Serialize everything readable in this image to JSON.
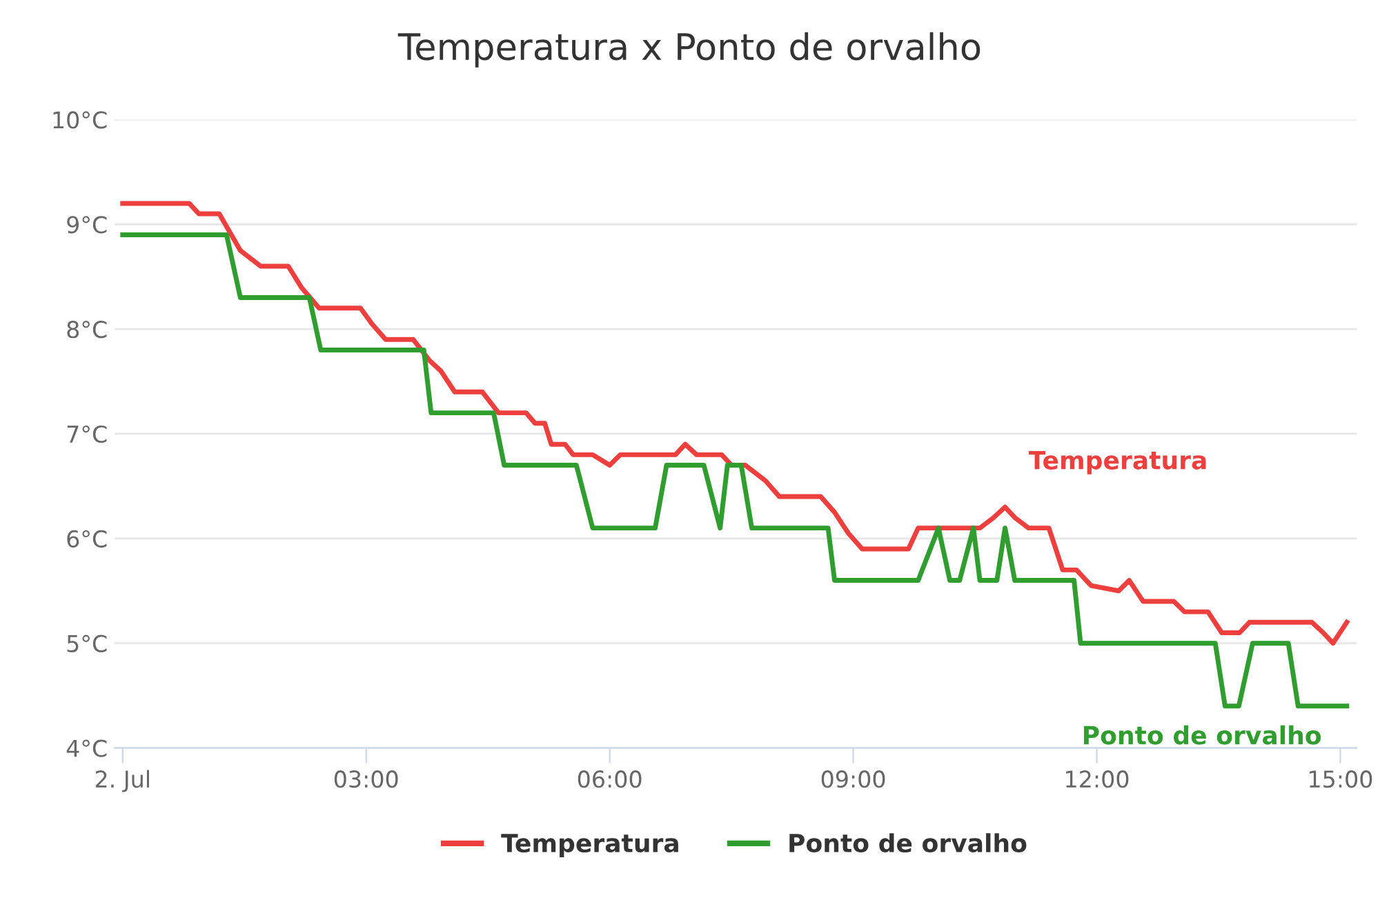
{
  "chart_data": {
    "type": "line",
    "title": "Temperatura x Ponto de orvalho",
    "xlim": [
      -0.1,
      15.2
    ],
    "xticks": [
      {
        "value": 0,
        "label": "2. Jul"
      },
      {
        "value": 3,
        "label": "03:00"
      },
      {
        "value": 6,
        "label": "06:00"
      },
      {
        "value": 9,
        "label": "09:00"
      },
      {
        "value": 12,
        "label": "12:00"
      },
      {
        "value": 15,
        "label": "15:00"
      }
    ],
    "ylim": [
      4,
      10
    ],
    "yticks": [
      {
        "value": 4,
        "label": "4°C"
      },
      {
        "value": 5,
        "label": "5°C"
      },
      {
        "value": 6,
        "label": "6°C"
      },
      {
        "value": 7,
        "label": "7°C"
      },
      {
        "value": 8,
        "label": "8°C"
      },
      {
        "value": 9,
        "label": "9°C"
      },
      {
        "value": 10,
        "label": "10°C"
      }
    ],
    "grid": "y",
    "legend": "bottom",
    "marker": "none",
    "line_style": "solid",
    "series": [
      {
        "name": "Temperatura",
        "color": "#ee3f3f",
        "x": [
          0,
          0.82,
          0.94,
          1.19,
          1.45,
          1.7,
          2.04,
          2.2,
          2.42,
          2.93,
          3.07,
          3.24,
          3.58,
          3.78,
          3.92,
          4.09,
          4.43,
          4.63,
          4.97,
          5.08,
          5.2,
          5.28,
          5.45,
          5.55,
          5.79,
          6.0,
          6.13,
          6.81,
          6.93,
          7.07,
          7.38,
          7.5,
          7.67,
          7.92,
          8.09,
          8.6,
          8.77,
          8.94,
          9.11,
          9.68,
          9.8,
          10.56,
          10.73,
          10.87,
          10.99,
          11.16,
          11.41,
          11.58,
          11.75,
          11.93,
          12.27,
          12.4,
          12.57,
          12.95,
          13.08,
          13.37,
          13.54,
          13.76,
          13.88,
          14.65,
          14.79,
          14.91,
          15.08
        ],
        "values": [
          9.2,
          9.2,
          9.1,
          9.1,
          8.75,
          8.6,
          8.6,
          8.4,
          8.2,
          8.2,
          8.05,
          7.9,
          7.9,
          7.7,
          7.6,
          7.4,
          7.4,
          7.2,
          7.2,
          7.1,
          7.1,
          6.9,
          6.9,
          6.8,
          6.8,
          6.7,
          6.8,
          6.8,
          6.9,
          6.8,
          6.8,
          6.7,
          6.7,
          6.55,
          6.4,
          6.4,
          6.25,
          6.05,
          5.9,
          5.9,
          6.1,
          6.1,
          6.2,
          6.3,
          6.2,
          6.1,
          6.1,
          5.7,
          5.7,
          5.55,
          5.5,
          5.6,
          5.4,
          5.4,
          5.3,
          5.3,
          5.1,
          5.1,
          5.2,
          5.2,
          5.1,
          5.0,
          5.2
        ]
      },
      {
        "name": "Ponto de orvalho",
        "color": "#2f9e2f",
        "x": [
          0,
          1.28,
          1.45,
          2.3,
          2.44,
          3.71,
          3.8,
          4.57,
          4.7,
          5.59,
          5.79,
          6.56,
          6.7,
          7.16,
          7.36,
          7.45,
          7.62,
          7.75,
          8.69,
          8.77,
          9.8,
          10.05,
          10.19,
          10.31,
          10.48,
          10.56,
          10.77,
          10.87,
          10.99,
          11.72,
          11.8,
          13.46,
          13.58,
          13.75,
          13.92,
          14.36,
          14.48,
          15.08
        ],
        "values": [
          8.9,
          8.9,
          8.3,
          8.3,
          7.8,
          7.8,
          7.2,
          7.2,
          6.7,
          6.7,
          6.1,
          6.1,
          6.7,
          6.7,
          6.1,
          6.7,
          6.7,
          6.1,
          6.1,
          5.6,
          5.6,
          6.1,
          5.6,
          5.6,
          6.1,
          5.6,
          5.6,
          6.1,
          5.6,
          5.6,
          5.0,
          5.0,
          4.4,
          4.4,
          5.0,
          5.0,
          4.4,
          4.4
        ]
      }
    ]
  }
}
